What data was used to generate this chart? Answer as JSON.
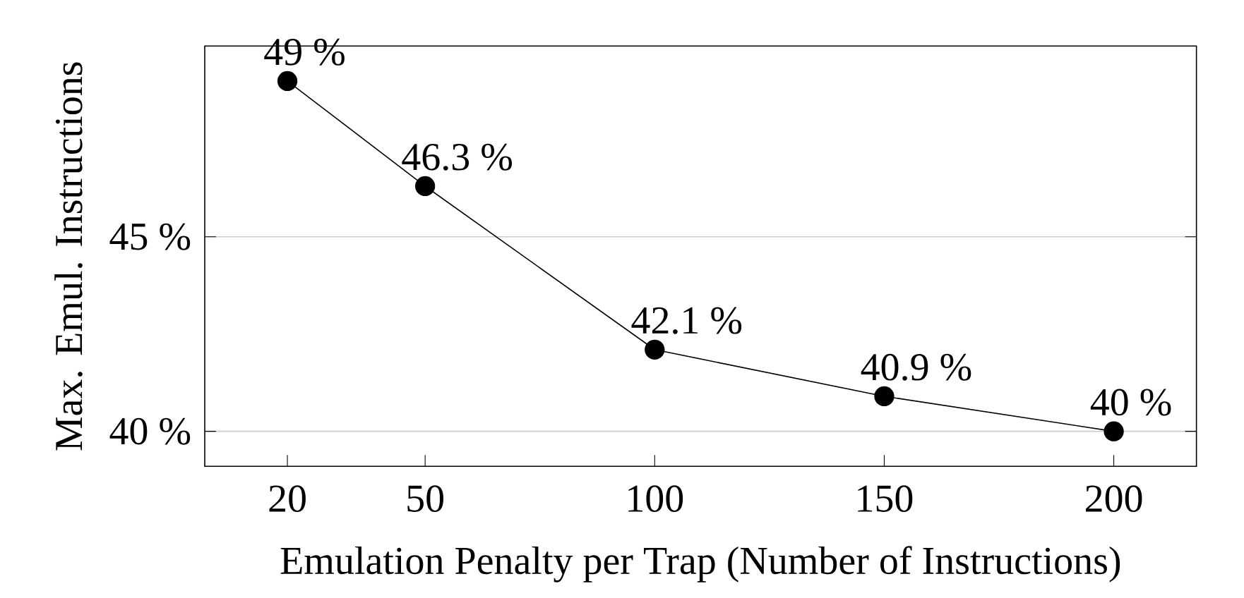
{
  "chart_data": {
    "type": "line",
    "xlabel": "Emulation Penalty per Trap (Number of Instructions)",
    "ylabel": "Max. Emul. Instructions",
    "x": [
      20,
      50,
      100,
      150,
      200
    ],
    "values": [
      49,
      46.3,
      42.1,
      40.9,
      40
    ],
    "value_labels": [
      "49 %",
      "46.3 %",
      "42.1 %",
      "40.9 %",
      "40 %"
    ],
    "color": "#000000",
    "marker": "circle",
    "line_style": "solid",
    "xlim": [
      2,
      218
    ],
    "ylim": [
      39.1,
      49.9
    ],
    "xticks": [
      20,
      50,
      100,
      150,
      200
    ],
    "yticks": [
      {
        "value": 40,
        "label": "40 %"
      },
      {
        "value": 45,
        "label": "45 %"
      }
    ],
    "grid": "y"
  }
}
